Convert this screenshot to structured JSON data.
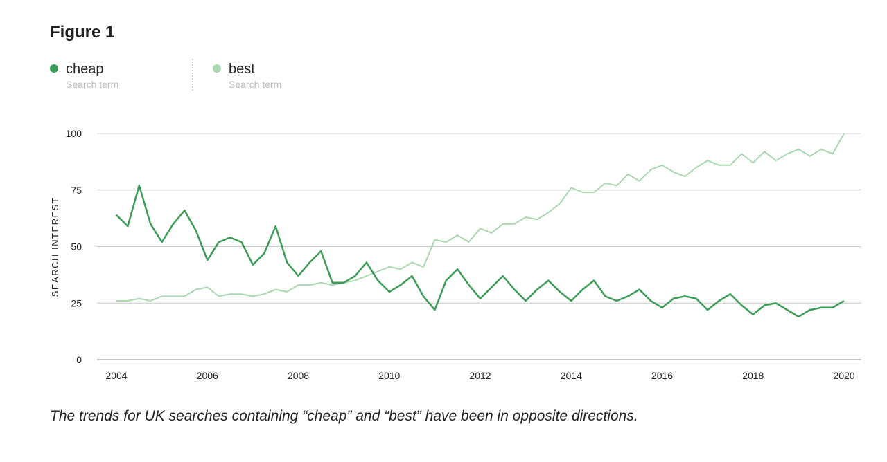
{
  "chart_data": {
    "type": "line",
    "title": "Figure 1",
    "legend_caption": "Search term",
    "ylabel": "SEARCH INTEREST",
    "caption": "The trends for UK searches containing “cheap” and “best” have been in opposite directions.",
    "x": [
      2004,
      2004.25,
      2004.5,
      2004.75,
      2005,
      2005.25,
      2005.5,
      2005.75,
      2006,
      2006.25,
      2006.5,
      2006.75,
      2007,
      2007.25,
      2007.5,
      2007.75,
      2008,
      2008.25,
      2008.5,
      2008.75,
      2009,
      2009.25,
      2009.5,
      2009.75,
      2010,
      2010.25,
      2010.5,
      2010.75,
      2011,
      2011.25,
      2011.5,
      2011.75,
      2012,
      2012.25,
      2012.5,
      2012.75,
      2013,
      2013.25,
      2013.5,
      2013.75,
      2014,
      2014.25,
      2014.5,
      2014.75,
      2015,
      2015.25,
      2015.5,
      2015.75,
      2016,
      2016.25,
      2016.5,
      2016.75,
      2017,
      2017.25,
      2017.5,
      2017.75,
      2018,
      2018.25,
      2018.5,
      2018.75,
      2019,
      2019.25,
      2019.5,
      2019.75,
      2020
    ],
    "series": [
      {
        "name": "cheap",
        "color": "#3a9c56",
        "values": [
          64,
          59,
          77,
          60,
          52,
          60,
          66,
          57,
          44,
          52,
          54,
          52,
          42,
          47,
          59,
          43,
          37,
          43,
          48,
          34,
          34,
          37,
          43,
          35,
          30,
          33,
          37,
          28,
          22,
          35,
          40,
          33,
          27,
          32,
          37,
          31,
          26,
          31,
          35,
          30,
          26,
          31,
          35,
          28,
          26,
          28,
          31,
          26,
          23,
          27,
          28,
          27,
          22,
          26,
          29,
          24,
          20,
          24,
          25,
          22,
          19,
          22,
          23,
          23,
          26
        ]
      },
      {
        "name": "best",
        "color": "#a8d8b0",
        "values": [
          26,
          26,
          27,
          26,
          28,
          28,
          28,
          31,
          32,
          28,
          29,
          29,
          28,
          29,
          31,
          30,
          33,
          33,
          34,
          33,
          34,
          35,
          37,
          39,
          41,
          40,
          43,
          41,
          53,
          52,
          55,
          52,
          58,
          56,
          60,
          60,
          63,
          62,
          65,
          69,
          76,
          74,
          74,
          78,
          77,
          82,
          79,
          84,
          86,
          83,
          81,
          85,
          88,
          86,
          86,
          91,
          87,
          92,
          88,
          91,
          93,
          90,
          93,
          91,
          100
        ]
      }
    ],
    "xlim": [
      2004,
      2020
    ],
    "xticks": [
      2004,
      2006,
      2008,
      2010,
      2012,
      2014,
      2016,
      2018,
      2020
    ],
    "ylim": [
      0,
      100
    ],
    "yticks": [
      0,
      25,
      50,
      75,
      100
    ],
    "grid": true
  }
}
